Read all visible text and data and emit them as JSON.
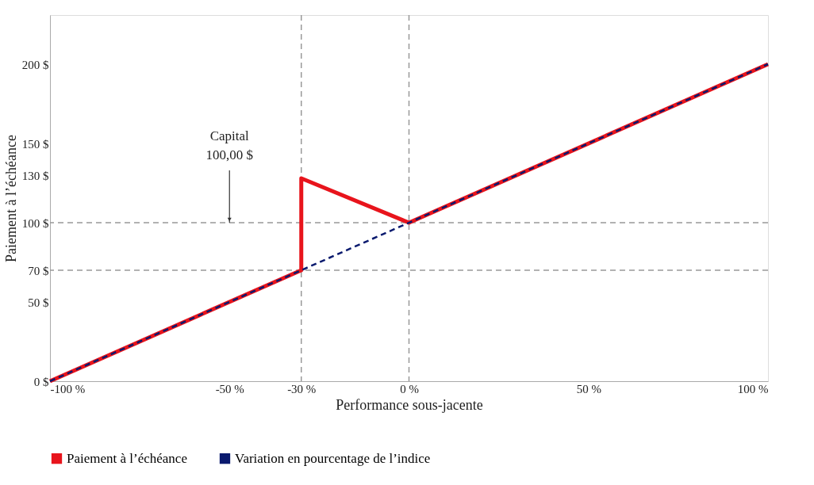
{
  "chart_data": {
    "type": "line",
    "xlabel": "Performance sous-jacente",
    "ylabel": "Paiement à l’échéance",
    "series": [
      {
        "name": "Paiement à l’échéance",
        "color": "#e8141c",
        "x": [
          -100,
          -30,
          -30,
          0,
          100
        ],
        "values": [
          0,
          70,
          128,
          100,
          200
        ],
        "line_style": "solid"
      },
      {
        "name": "Variation en pourcentage de l’indice",
        "color": "#0a1a6e",
        "x": [
          -100,
          100
        ],
        "values": [
          0,
          200
        ],
        "line_style": "dashed"
      }
    ],
    "xlim": [
      -100,
      100
    ],
    "ylim": [
      0,
      231
    ],
    "xticks": [
      {
        "value": -100,
        "label": "-100 %"
      },
      {
        "value": -50,
        "label": "-50 %"
      },
      {
        "value": -30,
        "label": "-30 %"
      },
      {
        "value": 0,
        "label": "0 %"
      },
      {
        "value": 50,
        "label": "50 %"
      },
      {
        "value": 100,
        "label": "100 %"
      }
    ],
    "yticks": [
      {
        "value": 0,
        "label": "0 $"
      },
      {
        "value": 50,
        "label": "50 $"
      },
      {
        "value": 70,
        "label": "70 $"
      },
      {
        "value": 100,
        "label": "100 $"
      },
      {
        "value": 130,
        "label": "130 $"
      },
      {
        "value": 150,
        "label": "150 $"
      },
      {
        "value": 200,
        "label": "200 $"
      }
    ],
    "ref_lines": [
      {
        "axis": "y",
        "value": 100,
        "color": "#999999",
        "line_style": "dashed"
      },
      {
        "axis": "y",
        "value": 70,
        "color": "#999999",
        "line_style": "dashed"
      },
      {
        "axis": "x",
        "value": -30,
        "color": "#999999",
        "line_style": "dashed"
      },
      {
        "axis": "x",
        "value": 0,
        "color": "#999999",
        "line_style": "dashed"
      }
    ],
    "annotations": [
      {
        "text": "Capital\n100,00 $",
        "x": -50,
        "y": 100
      }
    ],
    "grid": false,
    "legend": "bottom",
    "marker": "none"
  }
}
